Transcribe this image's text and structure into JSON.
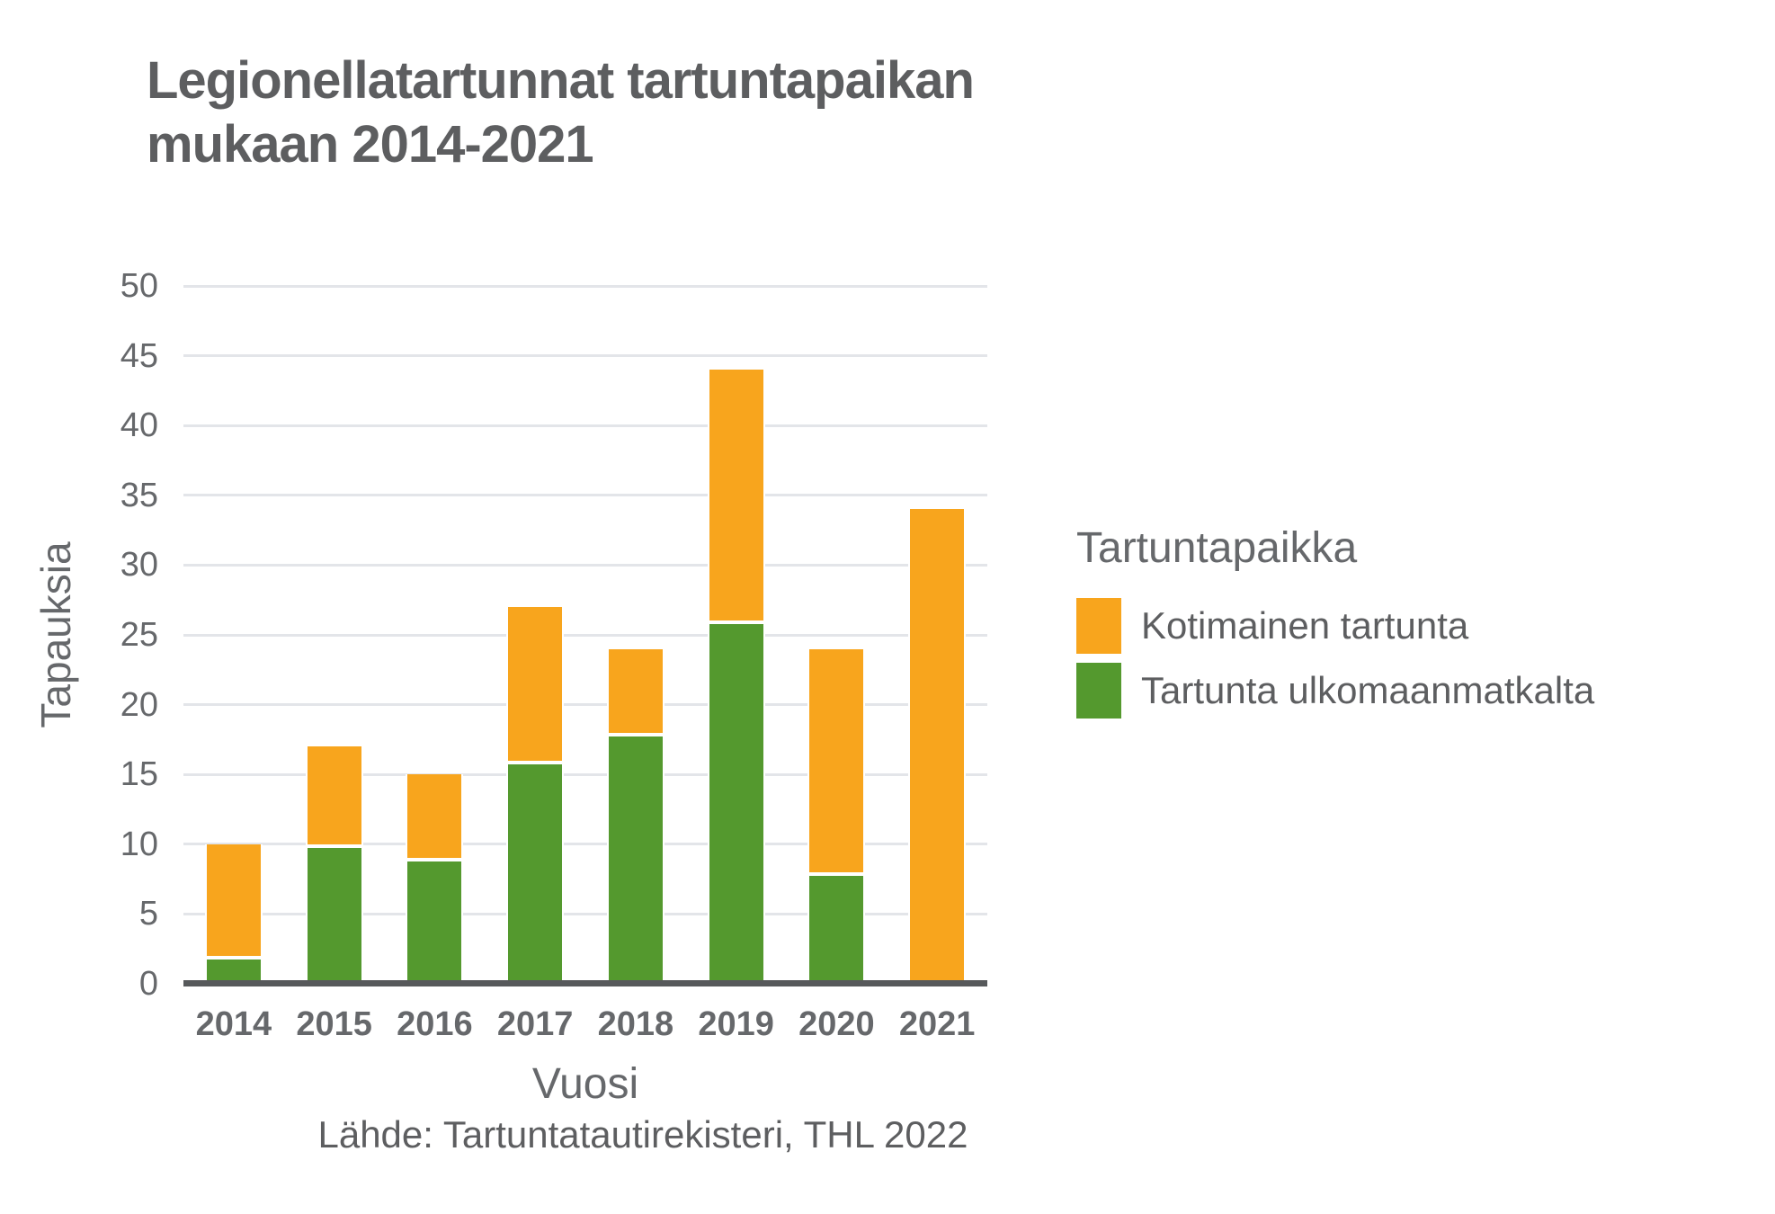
{
  "title": {
    "lines": [
      "Legionellatartunnat tartuntapaikan",
      "mukaan 2014-2021"
    ]
  },
  "chart_data": {
    "type": "bar",
    "stacked": true,
    "title": "Legionellatartunnat tartuntapaikan mukaan 2014-2021",
    "categories": [
      "2014",
      "2015",
      "2016",
      "2017",
      "2018",
      "2019",
      "2020",
      "2021"
    ],
    "series": [
      {
        "name": "Tartunta ulkomaanmatkalta",
        "color": "#54992e",
        "values": [
          2,
          10,
          9,
          16,
          18,
          26,
          8,
          0
        ]
      },
      {
        "name": "Kotimainen tartunta",
        "color": "#f8a51d",
        "values": [
          8,
          7,
          6,
          11,
          6,
          18,
          16,
          34
        ]
      }
    ],
    "totals": [
      10,
      17,
      15,
      27,
      24,
      44,
      24,
      34
    ],
    "xlabel": "Vuosi",
    "ylabel": "Tapauksia",
    "ylim": [
      0,
      50
    ],
    "yticks": [
      0,
      5,
      10,
      15,
      20,
      25,
      30,
      35,
      40,
      45,
      50
    ],
    "grid": "horizontal",
    "legend_position": "right"
  },
  "legend": {
    "title": "Tartuntapaikka",
    "items": [
      {
        "label": "Kotimainen tartunta",
        "color": "#f8a51d"
      },
      {
        "label": "Tartunta ulkomaanmatkalta",
        "color": "#54992e"
      }
    ]
  },
  "caption": "Lähde: Tartuntatautirekisteri, THL 2022"
}
